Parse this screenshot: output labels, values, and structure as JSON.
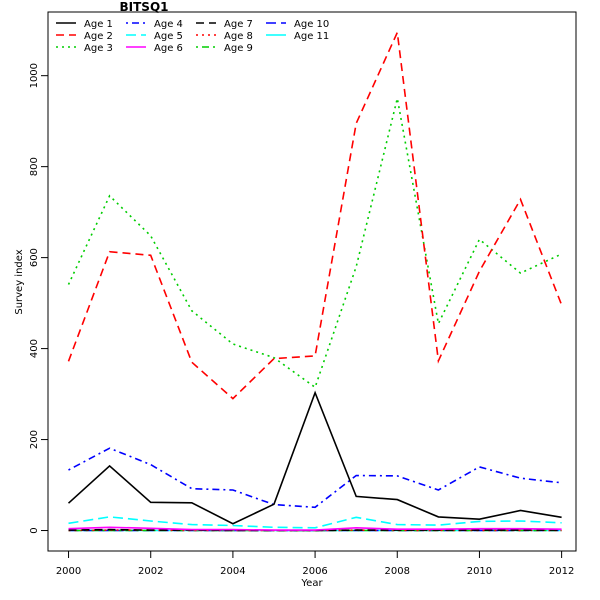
{
  "chart_data": {
    "type": "line",
    "title": "BITSQ1",
    "xlabel": "Year",
    "ylabel": "Survey index",
    "x": [
      2000,
      2001,
      2002,
      2003,
      2004,
      2005,
      2006,
      2007,
      2008,
      2009,
      2010,
      2011,
      2012
    ],
    "xlim": [
      1999.5,
      2012.35
    ],
    "ylim": [
      -45,
      1140
    ],
    "xticks": [
      2000,
      2002,
      2004,
      2006,
      2008,
      2010,
      2012
    ],
    "yticks": [
      0,
      200,
      400,
      600,
      800,
      1000
    ],
    "legend_position": "top-left",
    "grid": false,
    "series": [
      {
        "name": "Age 1",
        "color": "#000000",
        "dash": "solid",
        "values": [
          60,
          142,
          62,
          61,
          15,
          58,
          303,
          75,
          68,
          30,
          25,
          44,
          29
        ]
      },
      {
        "name": "Age 2",
        "color": "#ff0000",
        "dash": "dashed",
        "values": [
          372,
          613,
          605,
          370,
          290,
          378,
          384,
          895,
          1095,
          373,
          570,
          728,
          496
        ]
      },
      {
        "name": "Age 3",
        "color": "#00cd00",
        "dash": "dotted",
        "values": [
          541,
          736,
          648,
          483,
          410,
          380,
          315,
          580,
          950,
          455,
          640,
          566,
          608
        ]
      },
      {
        "name": "Age 4",
        "color": "#0000ff",
        "dash": "dotdash",
        "values": [
          133,
          181,
          145,
          92,
          89,
          57,
          51,
          121,
          120,
          89,
          140,
          115,
          105
        ]
      },
      {
        "name": "Age 5",
        "color": "#00ffff",
        "dash": "longdash",
        "values": [
          16,
          30,
          21,
          13,
          11,
          7,
          6,
          29,
          13,
          12,
          20,
          21,
          17
        ]
      },
      {
        "name": "Age 6",
        "color": "#ff00ff",
        "dash": "solid",
        "values": [
          4,
          7,
          5,
          2,
          2,
          1,
          1,
          6,
          3,
          3,
          4,
          4,
          3
        ]
      },
      {
        "name": "Age 7",
        "color": "#000000",
        "dash": "dashed",
        "values": [
          1,
          2,
          1,
          1,
          0,
          0,
          0,
          1,
          1,
          1,
          1,
          1,
          1
        ]
      },
      {
        "name": "Age 8",
        "color": "#ff0000",
        "dash": "dotted",
        "values": [
          0,
          1,
          1,
          0,
          0,
          0,
          0,
          1,
          0,
          0,
          0,
          0,
          0
        ]
      },
      {
        "name": "Age 9",
        "color": "#00cd00",
        "dash": "dotdash",
        "values": [
          0,
          0,
          0,
          0,
          0,
          0,
          0,
          0,
          0,
          0,
          0,
          0,
          0
        ]
      },
      {
        "name": "Age 10",
        "color": "#0000ff",
        "dash": "longdash",
        "values": [
          0,
          0,
          0,
          0,
          0,
          0,
          0,
          0,
          0,
          0,
          0,
          0,
          0
        ]
      },
      {
        "name": "Age 11",
        "color": "#00ffff",
        "dash": "solid",
        "values": [
          0,
          0,
          0,
          0,
          0,
          0,
          0,
          0,
          0,
          0,
          0,
          0,
          0
        ]
      }
    ]
  }
}
